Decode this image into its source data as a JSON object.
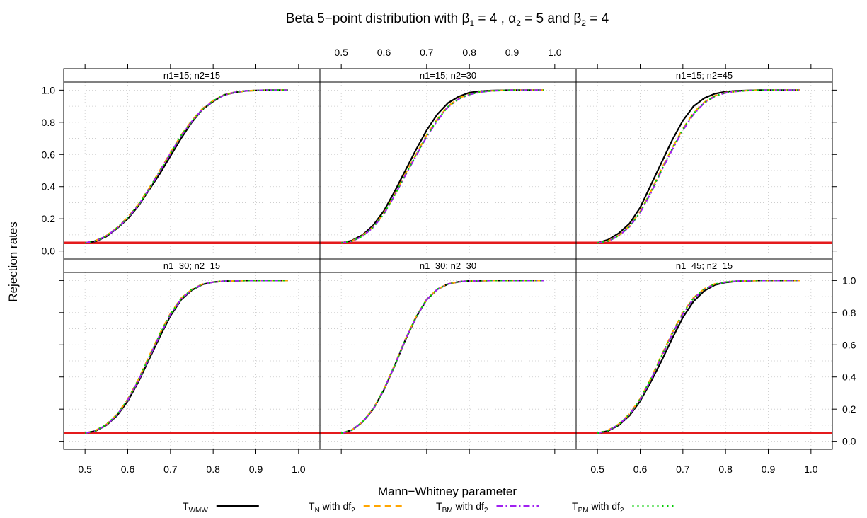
{
  "chart_data": {
    "type": "line",
    "title": {
      "prefix": "Beta 5−point distribution with ",
      "beta": "β",
      "alpha": "α",
      "sub1": "1",
      "sub2": "2",
      "eq4a": " = 4 , ",
      "eq5": " = 5 and ",
      "eq4b": " = 4"
    },
    "xlabel": "Mann−Whitney parameter",
    "ylabel": "Rejection rates",
    "xlim": [
      0.45,
      1.05
    ],
    "ylim": [
      -0.05,
      1.05
    ],
    "x_ticks": [
      "0.5",
      "0.6",
      "0.7",
      "0.8",
      "0.9",
      "1.0"
    ],
    "y_ticks": [
      "0.0",
      "0.2",
      "0.4",
      "0.6",
      "0.8",
      "1.0"
    ],
    "reference_level": 0.05,
    "reference_color": "#e41a1c",
    "grid": true,
    "legend_position": "bottom",
    "x": [
      0.5,
      0.525,
      0.55,
      0.575,
      0.6,
      0.625,
      0.65,
      0.675,
      0.7,
      0.725,
      0.75,
      0.775,
      0.8,
      0.825,
      0.85,
      0.875,
      0.9,
      0.925,
      0.95,
      0.975
    ],
    "legend": [
      {
        "main": "T",
        "sub": "WMW",
        "rest": "",
        "rest_sub": "",
        "color": "#000000",
        "dash": "",
        "width": 2.2
      },
      {
        "main": "T",
        "sub": "N",
        "rest": " with df",
        "rest_sub": "2",
        "color": "#ffa500",
        "dash": "9 6",
        "width": 2.2
      },
      {
        "main": "T",
        "sub": "BM",
        "rest": " with df",
        "rest_sub": "2",
        "color": "#a020f0",
        "dash": "9 4 2 4",
        "width": 2.2
      },
      {
        "main": "T",
        "sub": "PM",
        "rest": " with df",
        "rest_sub": "2",
        "color": "#00cc00",
        "dash": "2 5",
        "width": 2.2
      }
    ],
    "panels": [
      {
        "label": "n1=15; n2=15",
        "series": [
          [
            0.05,
            0.06,
            0.09,
            0.14,
            0.2,
            0.28,
            0.38,
            0.48,
            0.59,
            0.7,
            0.8,
            0.88,
            0.93,
            0.97,
            0.985,
            0.995,
            0.998,
            1,
            1,
            1
          ],
          [
            0.05,
            0.065,
            0.095,
            0.145,
            0.21,
            0.29,
            0.39,
            0.5,
            0.61,
            0.72,
            0.81,
            0.885,
            0.935,
            0.97,
            0.987,
            0.995,
            0.998,
            1,
            1,
            1
          ],
          [
            0.05,
            0.063,
            0.093,
            0.142,
            0.205,
            0.285,
            0.385,
            0.495,
            0.605,
            0.715,
            0.805,
            0.882,
            0.932,
            0.968,
            0.986,
            0.995,
            0.998,
            1,
            1,
            1
          ],
          [
            0.05,
            0.064,
            0.094,
            0.144,
            0.207,
            0.287,
            0.387,
            0.497,
            0.607,
            0.717,
            0.807,
            0.883,
            0.933,
            0.969,
            0.986,
            0.995,
            0.998,
            1,
            1,
            1
          ]
        ]
      },
      {
        "label": "n1=15; n2=30",
        "series": [
          [
            0.05,
            0.065,
            0.1,
            0.16,
            0.25,
            0.37,
            0.5,
            0.63,
            0.75,
            0.85,
            0.92,
            0.96,
            0.985,
            0.993,
            0.997,
            0.999,
            1,
            1,
            1,
            1
          ],
          [
            0.05,
            0.062,
            0.095,
            0.15,
            0.235,
            0.35,
            0.48,
            0.6,
            0.72,
            0.82,
            0.9,
            0.95,
            0.975,
            0.99,
            0.996,
            0.998,
            1,
            1,
            1,
            1
          ],
          [
            0.05,
            0.06,
            0.092,
            0.147,
            0.23,
            0.345,
            0.47,
            0.59,
            0.71,
            0.81,
            0.895,
            0.945,
            0.972,
            0.988,
            0.995,
            0.998,
            1,
            1,
            1,
            1
          ],
          [
            0.05,
            0.061,
            0.093,
            0.148,
            0.232,
            0.347,
            0.475,
            0.595,
            0.715,
            0.815,
            0.897,
            0.947,
            0.973,
            0.989,
            0.995,
            0.998,
            1,
            1,
            1,
            1
          ]
        ]
      },
      {
        "label": "n1=15; n2=45",
        "series": [
          [
            0.05,
            0.07,
            0.11,
            0.17,
            0.27,
            0.41,
            0.55,
            0.69,
            0.81,
            0.9,
            0.95,
            0.978,
            0.99,
            0.996,
            0.998,
            1,
            1,
            1,
            1,
            1
          ],
          [
            0.05,
            0.063,
            0.097,
            0.155,
            0.245,
            0.37,
            0.51,
            0.64,
            0.76,
            0.86,
            0.925,
            0.965,
            0.985,
            0.993,
            0.997,
            0.999,
            1,
            1,
            1,
            1
          ],
          [
            0.05,
            0.061,
            0.094,
            0.15,
            0.238,
            0.36,
            0.5,
            0.63,
            0.75,
            0.85,
            0.92,
            0.962,
            0.983,
            0.992,
            0.997,
            0.999,
            1,
            1,
            1,
            1
          ],
          [
            0.05,
            0.062,
            0.095,
            0.152,
            0.24,
            0.365,
            0.505,
            0.635,
            0.755,
            0.855,
            0.922,
            0.963,
            0.984,
            0.992,
            0.997,
            0.999,
            1,
            1,
            1,
            1
          ]
        ]
      },
      {
        "label": "n1=30; n2=15",
        "series": [
          [
            0.05,
            0.065,
            0.1,
            0.16,
            0.25,
            0.37,
            0.51,
            0.65,
            0.78,
            0.88,
            0.94,
            0.975,
            0.99,
            0.996,
            0.998,
            1,
            1,
            1,
            1,
            1
          ],
          [
            0.05,
            0.068,
            0.105,
            0.168,
            0.262,
            0.385,
            0.53,
            0.67,
            0.795,
            0.89,
            0.945,
            0.978,
            0.991,
            0.996,
            0.998,
            1,
            1,
            1,
            1,
            1
          ],
          [
            0.05,
            0.066,
            0.102,
            0.164,
            0.256,
            0.378,
            0.52,
            0.66,
            0.788,
            0.885,
            0.943,
            0.976,
            0.99,
            0.996,
            0.998,
            1,
            1,
            1,
            1,
            1
          ],
          [
            0.05,
            0.067,
            0.104,
            0.166,
            0.259,
            0.382,
            0.525,
            0.665,
            0.791,
            0.887,
            0.944,
            0.977,
            0.99,
            0.996,
            0.998,
            1,
            1,
            1,
            1,
            1
          ]
        ]
      },
      {
        "label": "n1=30; n2=30",
        "series": [
          [
            0.05,
            0.07,
            0.12,
            0.2,
            0.32,
            0.47,
            0.63,
            0.77,
            0.88,
            0.945,
            0.978,
            0.992,
            0.997,
            0.999,
            1,
            1,
            1,
            1,
            1,
            1
          ],
          [
            0.05,
            0.071,
            0.122,
            0.203,
            0.325,
            0.475,
            0.635,
            0.775,
            0.883,
            0.946,
            0.979,
            0.992,
            0.997,
            0.999,
            1,
            1,
            1,
            1,
            1,
            1
          ],
          [
            0.05,
            0.07,
            0.121,
            0.201,
            0.322,
            0.472,
            0.632,
            0.772,
            0.881,
            0.945,
            0.978,
            0.992,
            0.997,
            0.999,
            1,
            1,
            1,
            1,
            1,
            1
          ],
          [
            0.05,
            0.07,
            0.121,
            0.202,
            0.323,
            0.473,
            0.633,
            0.773,
            0.882,
            0.946,
            0.978,
            0.992,
            0.997,
            0.999,
            1,
            1,
            1,
            1,
            1,
            1
          ]
        ]
      },
      {
        "label": "n1=45; n2=15",
        "series": [
          [
            0.05,
            0.065,
            0.1,
            0.16,
            0.25,
            0.37,
            0.5,
            0.64,
            0.77,
            0.87,
            0.935,
            0.972,
            0.988,
            0.995,
            0.998,
            1,
            1,
            1,
            1,
            1
          ],
          [
            0.05,
            0.069,
            0.107,
            0.17,
            0.265,
            0.39,
            0.535,
            0.675,
            0.8,
            0.893,
            0.948,
            0.979,
            0.991,
            0.996,
            0.998,
            1,
            1,
            1,
            1,
            1
          ],
          [
            0.05,
            0.067,
            0.104,
            0.166,
            0.259,
            0.382,
            0.526,
            0.666,
            0.792,
            0.887,
            0.945,
            0.977,
            0.99,
            0.996,
            0.998,
            1,
            1,
            1,
            1,
            1
          ],
          [
            0.05,
            0.068,
            0.105,
            0.168,
            0.262,
            0.386,
            0.53,
            0.67,
            0.796,
            0.89,
            0.946,
            0.978,
            0.99,
            0.996,
            0.998,
            1,
            1,
            1,
            1,
            1
          ]
        ]
      }
    ]
  }
}
